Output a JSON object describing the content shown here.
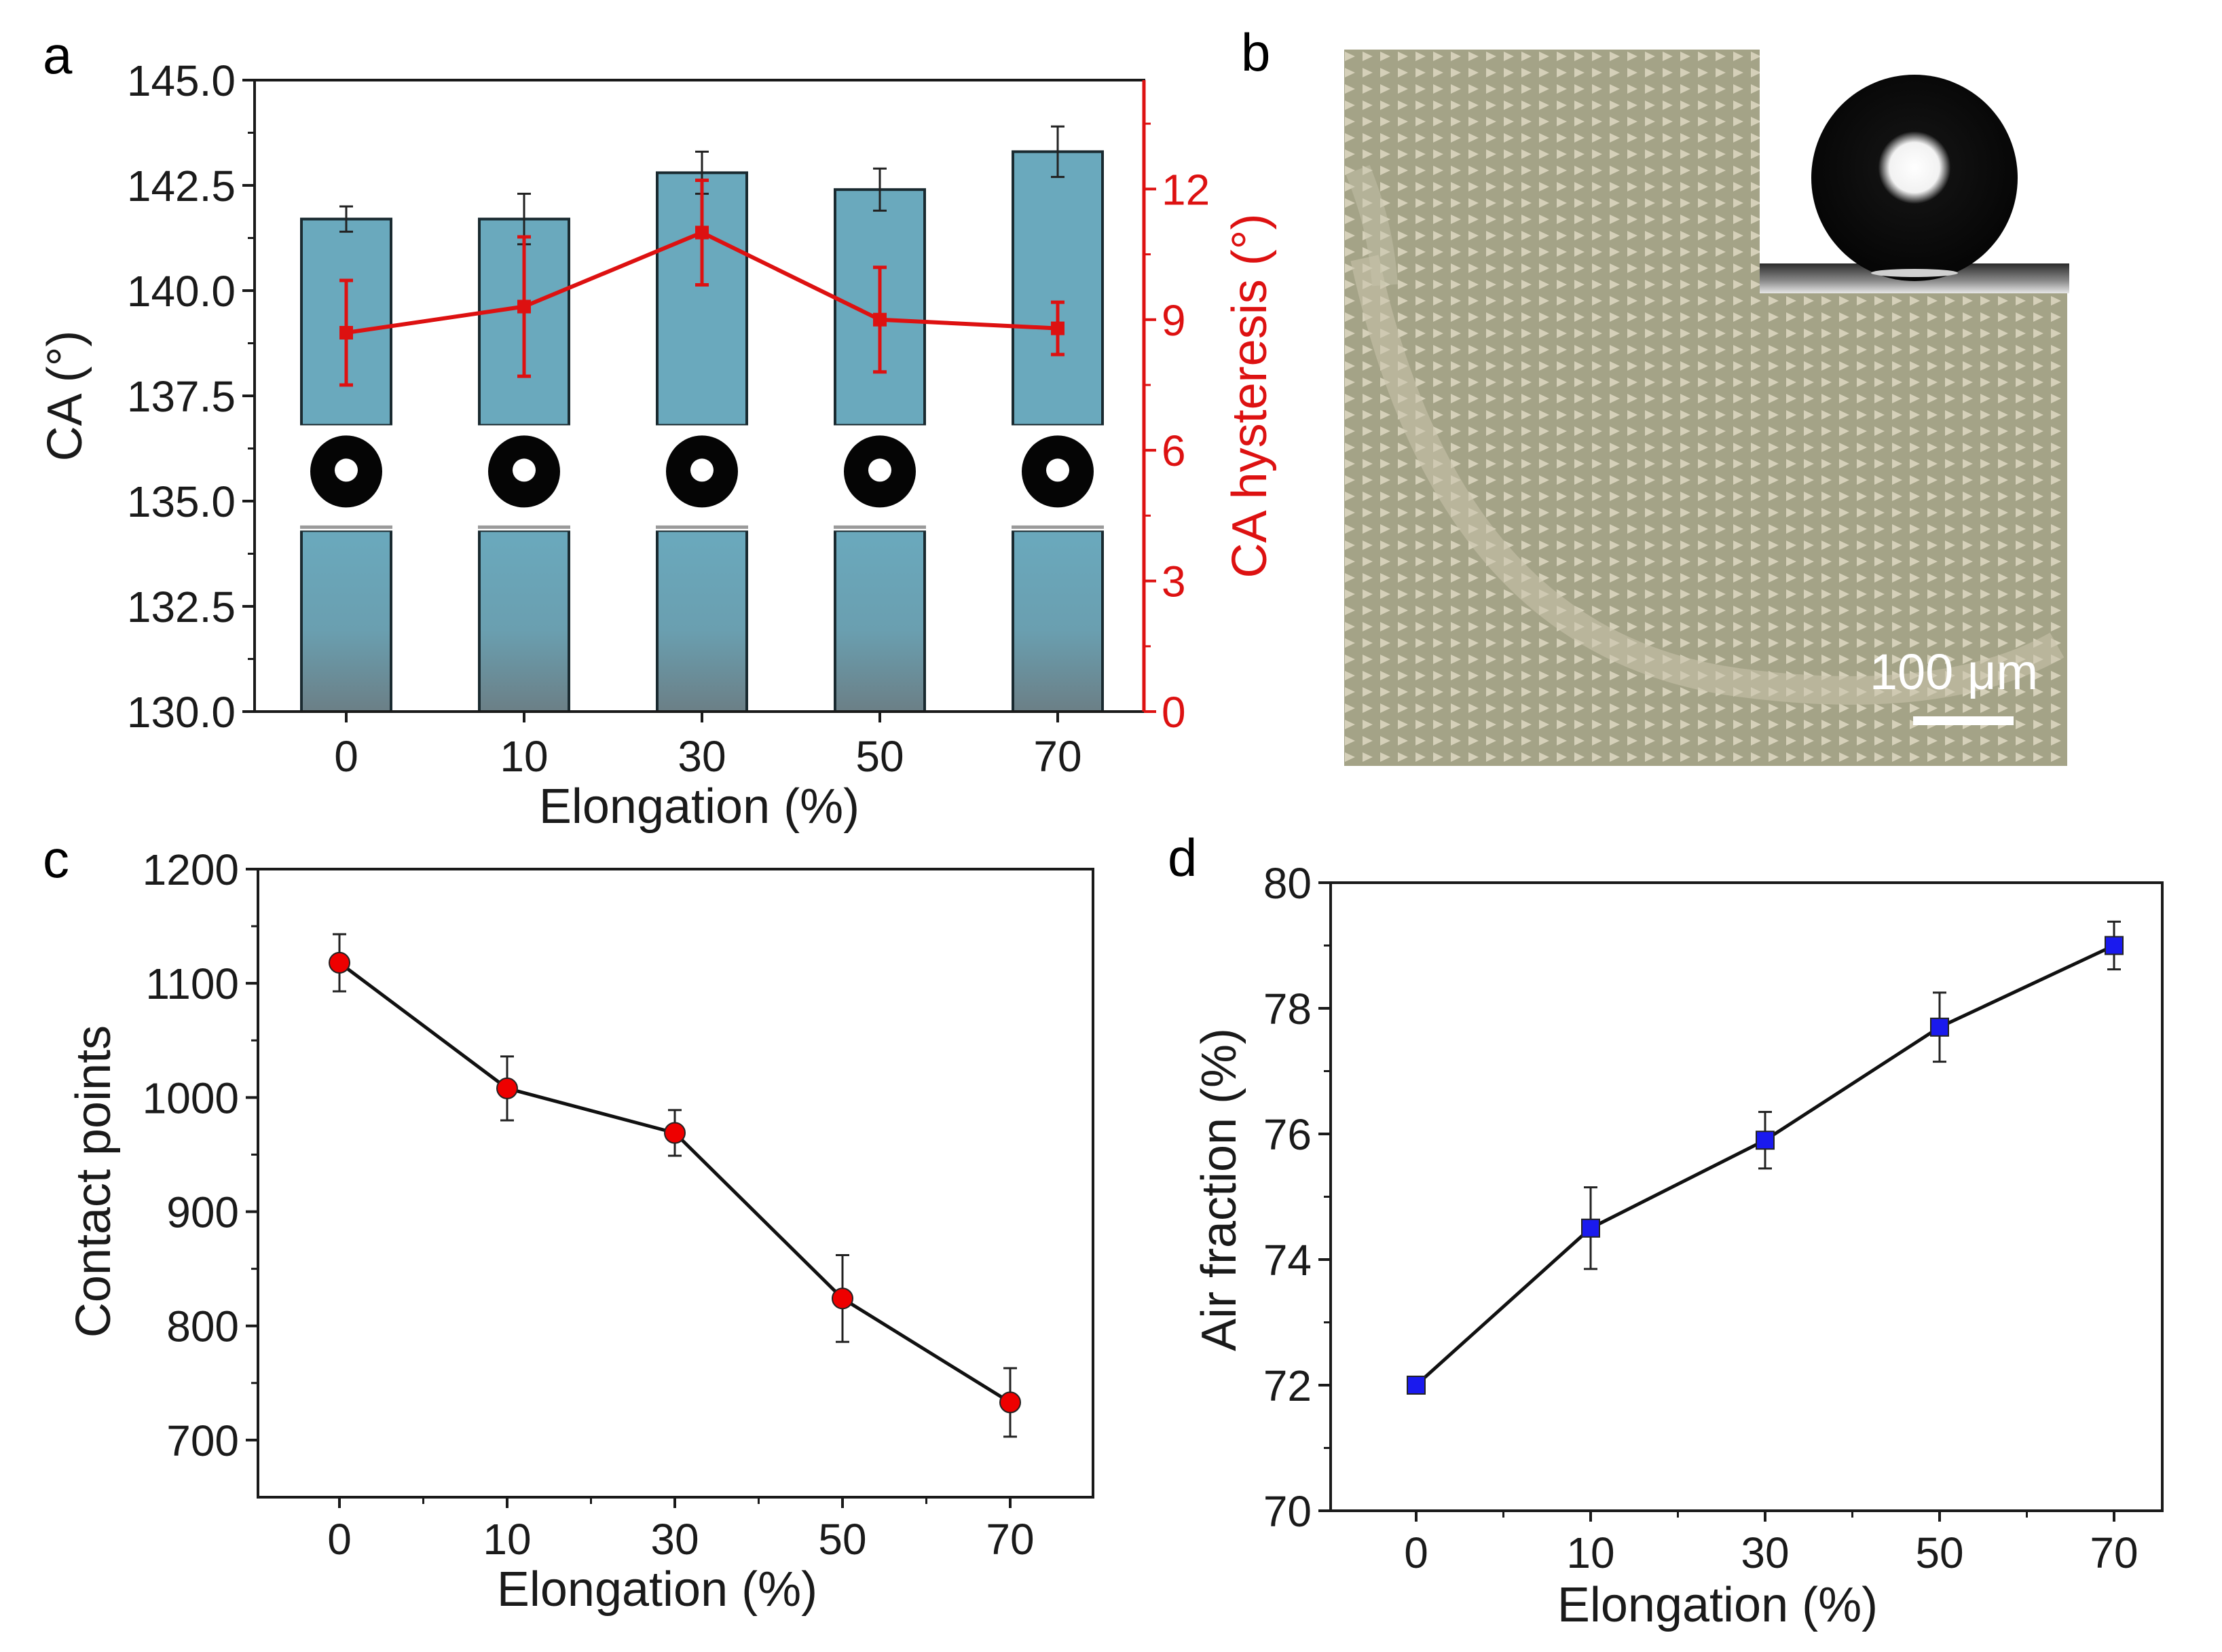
{
  "colors": {
    "bar_top": "#6aa9bd",
    "bar_bottom": "#6b7f86",
    "red": "#dd1111",
    "marker_red": "#ee0000",
    "marker_blue": "#1a1aee",
    "axis": "#1a1a1a",
    "micro_bg": "#a7a58a",
    "micro_dot": "#ddd8c3"
  },
  "panels": {
    "a": {
      "label": "a"
    },
    "b": {
      "label": "b",
      "scale_bar_label": "100 μm"
    },
    "c": {
      "label": "c"
    },
    "d": {
      "label": "d"
    }
  },
  "chart_data": [
    {
      "panel": "a",
      "type": "bar",
      "categories": [
        "0",
        "10",
        "30",
        "50",
        "70"
      ],
      "xlabel": "Elongation (%)",
      "ylabel": "CA (°)",
      "ylim": [
        130.0,
        145.0
      ],
      "yticks": [
        "130.0",
        "132.5",
        "135.0",
        "137.5",
        "140.0",
        "142.5",
        "145.0"
      ],
      "series": [
        {
          "name": "CA",
          "axis": "left",
          "values": [
            141.7,
            141.7,
            142.8,
            142.4,
            143.3
          ],
          "errors": [
            0.3,
            0.6,
            0.5,
            0.5,
            0.6
          ]
        }
      ],
      "secondary": {
        "type": "line",
        "ylabel": "CA hysteresis (°)",
        "ylim": [
          0,
          14.5
        ],
        "yticks": [
          "0",
          "3",
          "6",
          "9",
          "12"
        ],
        "values": [
          8.7,
          9.3,
          11.0,
          9.0,
          8.8
        ],
        "errors": [
          1.2,
          1.6,
          1.2,
          1.2,
          0.6
        ]
      }
    },
    {
      "panel": "c",
      "type": "line",
      "categories": [
        "0",
        "10",
        "30",
        "50",
        "70"
      ],
      "xlabel": "Elongation (%)",
      "ylabel": "Contact points",
      "ylim": [
        650,
        1200
      ],
      "yticks": [
        "700",
        "800",
        "900",
        "1000",
        "1100",
        "1200"
      ],
      "series": [
        {
          "name": "Contact points",
          "values": [
            1118,
            1008,
            969,
            824,
            733
          ],
          "errors": [
            25,
            28,
            20,
            38,
            30
          ]
        }
      ]
    },
    {
      "panel": "d",
      "type": "line",
      "categories": [
        "0",
        "10",
        "30",
        "50",
        "70"
      ],
      "xlabel": "Elongation (%)",
      "ylabel": "Air fraction (%)",
      "ylim": [
        70,
        80
      ],
      "yticks": [
        "70",
        "72",
        "74",
        "76",
        "78",
        "80"
      ],
      "series": [
        {
          "name": "Air fraction",
          "values": [
            72.0,
            74.5,
            75.9,
            77.7,
            79.0
          ],
          "errors": [
            0.1,
            0.65,
            0.45,
            0.55,
            0.38
          ]
        }
      ]
    }
  ]
}
